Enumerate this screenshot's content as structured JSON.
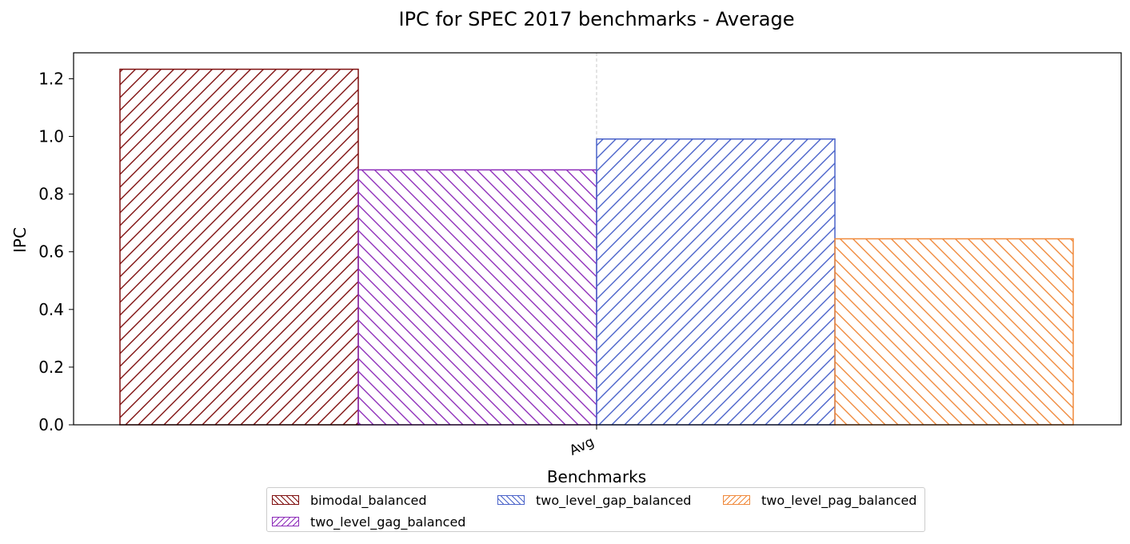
{
  "chart_data": {
    "type": "bar",
    "title": "IPC for SPEC 2017 benchmarks - Average",
    "xlabel": "Benchmarks",
    "ylabel": "IPC",
    "categories": [
      "Avg"
    ],
    "ylim": [
      0,
      1.29
    ],
    "yticks": [
      "0.0",
      "0.2",
      "0.4",
      "0.6",
      "0.8",
      "1.0",
      "1.2"
    ],
    "grid": "vertical dashed at category",
    "legend_position": "bottom-center",
    "series": [
      {
        "name": "bimodal_balanced",
        "values": [
          1.233
        ],
        "color": "#7f0f0f",
        "hatch": "forward"
      },
      {
        "name": "two_level_gag_balanced",
        "values": [
          0.884
        ],
        "color": "#8e2eba",
        "hatch": "backward"
      },
      {
        "name": "two_level_gap_balanced",
        "values": [
          0.991
        ],
        "color": "#4a63c9",
        "hatch": "forward"
      },
      {
        "name": "two_level_pag_balanced",
        "values": [
          0.645
        ],
        "color": "#f08a3c",
        "hatch": "backward"
      }
    ]
  }
}
